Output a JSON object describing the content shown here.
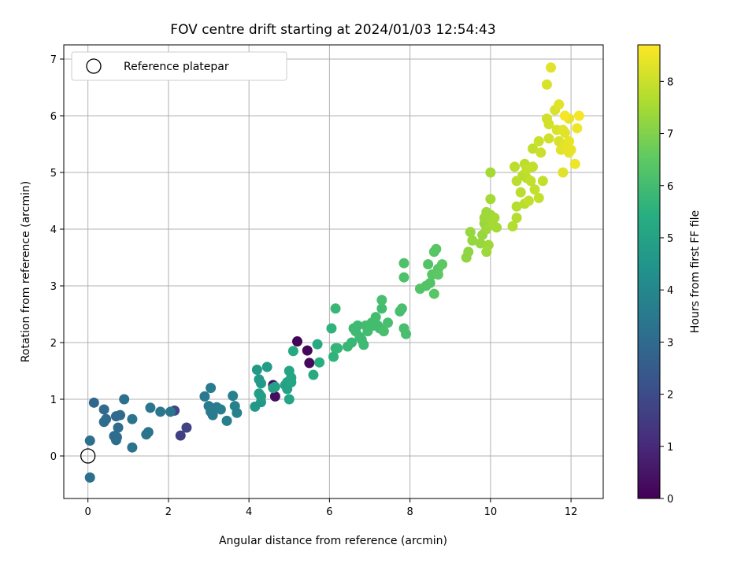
{
  "chart_data": {
    "type": "scatter",
    "title": "FOV centre drift starting at 2024/01/03 12:54:43",
    "xlabel": "Angular distance from reference (arcmin)",
    "ylabel": "Rotation from reference (arcmin)",
    "xlim": [
      -0.6,
      12.8
    ],
    "ylim": [
      -0.75,
      7.25
    ],
    "xticks": [
      0,
      2,
      4,
      6,
      8,
      10,
      12
    ],
    "yticks": [
      0,
      1,
      2,
      3,
      4,
      5,
      6,
      7
    ],
    "grid": true,
    "legend": {
      "placement": "top-left",
      "entries": [
        "Reference platepar"
      ]
    },
    "reference_point": {
      "x": 0,
      "y": 0,
      "name": "Reference platepar"
    },
    "colorbar": {
      "label": "Hours from first FF file",
      "colormap": "viridis",
      "range": [
        0,
        8.7
      ],
      "ticks": [
        0,
        1,
        2,
        3,
        4,
        5,
        6,
        7,
        8
      ]
    },
    "points": [
      [
        5.2,
        2.02,
        0.1
      ],
      [
        5.45,
        1.86,
        0.15
      ],
      [
        5.5,
        1.64,
        0.2
      ],
      [
        4.6,
        1.25,
        0.25
      ],
      [
        4.65,
        1.05,
        0.3
      ],
      [
        2.3,
        0.36,
        1.6
      ],
      [
        2.45,
        0.5,
        1.7
      ],
      [
        2.15,
        0.8,
        1.8
      ],
      [
        0.15,
        0.94,
        2.9
      ],
      [
        0.4,
        0.82,
        3.0
      ],
      [
        0.45,
        0.65,
        3.0
      ],
      [
        0.4,
        0.6,
        3.1
      ],
      [
        0.7,
        0.7,
        3.0
      ],
      [
        0.8,
        0.72,
        3.0
      ],
      [
        0.75,
        0.5,
        3.1
      ],
      [
        0.65,
        0.35,
        3.1
      ],
      [
        0.7,
        0.28,
        3.1
      ],
      [
        0.72,
        0.33,
        3.1
      ],
      [
        0.9,
        1.0,
        3.2
      ],
      [
        0.05,
        0.27,
        3.2
      ],
      [
        0.05,
        -0.38,
        3.2
      ],
      [
        1.1,
        0.65,
        3.3
      ],
      [
        1.1,
        0.15,
        3.3
      ],
      [
        1.45,
        0.38,
        3.3
      ],
      [
        1.5,
        0.42,
        3.3
      ],
      [
        1.55,
        0.85,
        3.4
      ],
      [
        1.8,
        0.78,
        3.4
      ],
      [
        2.05,
        0.78,
        3.4
      ],
      [
        2.9,
        1.05,
        3.5
      ],
      [
        3.05,
        1.2,
        3.6
      ],
      [
        3.0,
        0.88,
        3.6
      ],
      [
        3.05,
        0.78,
        3.6
      ],
      [
        3.1,
        0.72,
        3.6
      ],
      [
        3.2,
        0.86,
        3.6
      ],
      [
        3.3,
        0.82,
        3.7
      ],
      [
        3.45,
        0.62,
        3.7
      ],
      [
        3.6,
        1.06,
        3.8
      ],
      [
        3.65,
        0.88,
        3.8
      ],
      [
        3.7,
        0.76,
        3.8
      ],
      [
        4.15,
        0.87,
        4.6
      ],
      [
        4.3,
        0.95,
        4.6
      ],
      [
        4.2,
        1.52,
        4.7
      ],
      [
        4.25,
        1.35,
        4.7
      ],
      [
        4.3,
        1.28,
        4.7
      ],
      [
        4.25,
        1.1,
        4.8
      ],
      [
        4.3,
        1.05,
        4.8
      ],
      [
        4.45,
        1.57,
        4.8
      ],
      [
        4.6,
        1.2,
        4.9
      ],
      [
        4.65,
        1.22,
        4.9
      ],
      [
        4.9,
        1.25,
        5.0
      ],
      [
        4.95,
        1.18,
        5.0
      ],
      [
        4.95,
        1.3,
        5.0
      ],
      [
        5.0,
        1.5,
        5.1
      ],
      [
        5.05,
        1.38,
        5.1
      ],
      [
        5.05,
        1.3,
        5.1
      ],
      [
        5.0,
        1.0,
        5.1
      ],
      [
        5.1,
        1.85,
        5.2
      ],
      [
        5.6,
        1.43,
        5.3
      ],
      [
        5.7,
        1.97,
        5.3
      ],
      [
        5.75,
        1.65,
        5.4
      ],
      [
        6.05,
        2.25,
        5.6
      ],
      [
        6.1,
        1.75,
        5.6
      ],
      [
        6.15,
        1.9,
        5.7
      ],
      [
        6.2,
        1.9,
        5.7
      ],
      [
        6.15,
        2.6,
        5.8
      ],
      [
        6.45,
        1.93,
        5.8
      ],
      [
        6.55,
        2.0,
        5.8
      ],
      [
        6.6,
        2.25,
        5.9
      ],
      [
        6.65,
        2.2,
        5.9
      ],
      [
        6.7,
        2.3,
        5.9
      ],
      [
        6.75,
        2.1,
        5.9
      ],
      [
        6.8,
        2.05,
        5.9
      ],
      [
        6.85,
        1.96,
        5.9
      ],
      [
        6.9,
        2.3,
        6.0
      ],
      [
        6.95,
        2.2,
        6.0
      ],
      [
        7.05,
        2.35,
        6.0
      ],
      [
        7.1,
        2.3,
        6.0
      ],
      [
        7.15,
        2.45,
        6.0
      ],
      [
        7.2,
        2.3,
        6.0
      ],
      [
        7.25,
        2.25,
        6.0
      ],
      [
        7.3,
        2.6,
        6.0
      ],
      [
        7.3,
        2.75,
        6.1
      ],
      [
        7.35,
        2.2,
        6.1
      ],
      [
        7.45,
        2.35,
        6.1
      ],
      [
        7.75,
        2.55,
        6.1
      ],
      [
        7.8,
        2.6,
        6.1
      ],
      [
        7.85,
        2.25,
        6.1
      ],
      [
        7.9,
        2.15,
        6.1
      ],
      [
        7.85,
        3.4,
        6.2
      ],
      [
        7.85,
        3.15,
        6.2
      ],
      [
        8.25,
        2.95,
        6.3
      ],
      [
        8.4,
        3.0,
        6.3
      ],
      [
        8.45,
        3.38,
        6.3
      ],
      [
        8.5,
        3.05,
        6.3
      ],
      [
        8.55,
        3.2,
        6.4
      ],
      [
        8.6,
        3.6,
        6.4
      ],
      [
        8.65,
        3.65,
        6.4
      ],
      [
        8.6,
        2.86,
        6.4
      ],
      [
        8.7,
        3.3,
        6.4
      ],
      [
        8.8,
        3.38,
        6.5
      ],
      [
        8.7,
        3.2,
        6.5
      ],
      [
        9.4,
        3.5,
        7.2
      ],
      [
        9.45,
        3.6,
        7.2
      ],
      [
        9.5,
        3.95,
        7.3
      ],
      [
        9.55,
        3.8,
        7.3
      ],
      [
        9.75,
        3.75,
        7.3
      ],
      [
        9.8,
        3.9,
        7.3
      ],
      [
        9.85,
        4.1,
        7.3
      ],
      [
        9.9,
        4.3,
        7.4
      ],
      [
        9.85,
        4.2,
        7.4
      ],
      [
        9.9,
        4.0,
        7.4
      ],
      [
        9.95,
        3.72,
        7.4
      ],
      [
        9.9,
        3.6,
        7.4
      ],
      [
        10.0,
        4.25,
        7.4
      ],
      [
        10.05,
        4.1,
        7.5
      ],
      [
        10.1,
        4.2,
        7.5
      ],
      [
        10.15,
        4.03,
        7.5
      ],
      [
        10.0,
        4.53,
        7.5
      ],
      [
        10.0,
        5.0,
        7.5
      ],
      [
        10.55,
        4.05,
        7.7
      ],
      [
        10.65,
        4.4,
        7.7
      ],
      [
        10.65,
        4.2,
        7.7
      ],
      [
        10.6,
        5.1,
        7.8
      ],
      [
        10.65,
        4.85,
        7.8
      ],
      [
        10.75,
        4.65,
        7.8
      ],
      [
        10.8,
        4.95,
        7.8
      ],
      [
        10.85,
        4.45,
        7.8
      ],
      [
        10.9,
        4.9,
        7.8
      ],
      [
        10.85,
        5.15,
        7.8
      ],
      [
        10.9,
        5.05,
        7.9
      ],
      [
        10.95,
        4.5,
        7.9
      ],
      [
        11.0,
        4.85,
        7.9
      ],
      [
        11.05,
        5.1,
        7.9
      ],
      [
        11.1,
        4.7,
        7.9
      ],
      [
        11.05,
        5.42,
        7.9
      ],
      [
        11.2,
        4.55,
        7.9
      ],
      [
        11.3,
        4.85,
        7.9
      ],
      [
        11.2,
        5.55,
        8.0
      ],
      [
        11.25,
        5.35,
        8.0
      ],
      [
        11.4,
        5.95,
        8.1
      ],
      [
        11.45,
        5.6,
        8.1
      ],
      [
        11.45,
        5.85,
        8.1
      ],
      [
        11.4,
        6.55,
        8.2
      ],
      [
        11.5,
        6.85,
        8.3
      ],
      [
        11.6,
        6.1,
        8.2
      ],
      [
        11.7,
        6.2,
        8.3
      ],
      [
        11.65,
        5.75,
        8.2
      ],
      [
        11.7,
        5.55,
        8.2
      ],
      [
        11.75,
        5.4,
        8.3
      ],
      [
        11.8,
        5.75,
        8.3
      ],
      [
        11.85,
        5.7,
        8.3
      ],
      [
        11.8,
        5.0,
        8.3
      ],
      [
        11.85,
        5.5,
        8.3
      ],
      [
        11.9,
        5.45,
        8.4
      ],
      [
        11.95,
        5.55,
        8.4
      ],
      [
        11.95,
        5.35,
        8.4
      ],
      [
        11.95,
        5.95,
        8.4
      ],
      [
        12.0,
        5.4,
        8.4
      ],
      [
        12.1,
        5.15,
        8.5
      ],
      [
        12.15,
        5.78,
        8.5
      ],
      [
        12.2,
        6.0,
        8.6
      ],
      [
        11.85,
        6.0,
        8.6
      ]
    ]
  }
}
